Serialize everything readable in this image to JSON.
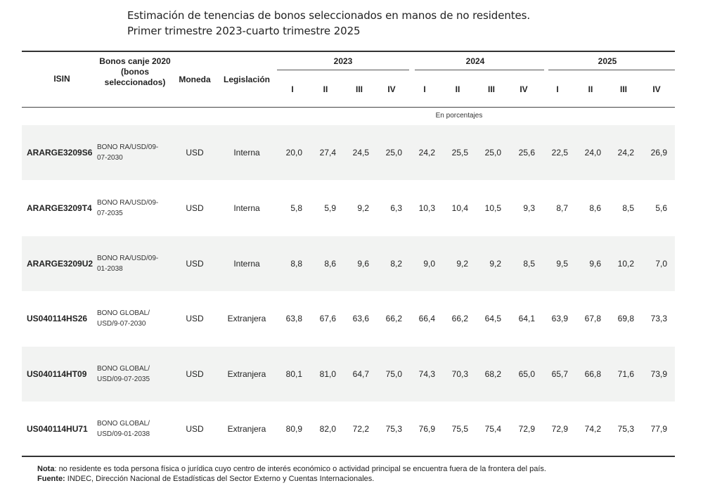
{
  "title": {
    "line1": "Estimación de tenencias de bonos seleccionados en manos de no residentes.",
    "line2": "Primer trimestre 2023-cuarto trimestre 2025"
  },
  "headers": {
    "isin": "ISIN",
    "bonos": "Bonos canje 2020 (bonos seleccionados)",
    "moneda": "Moneda",
    "legislacion": "Legislación",
    "years": [
      "2023",
      "2024",
      "2025"
    ],
    "quarters": [
      "I",
      "II",
      "III",
      "IV",
      "I",
      "II",
      "III",
      "IV",
      "I",
      "II",
      "III",
      "IV"
    ]
  },
  "unit_label": "En porcentajes",
  "rows": [
    {
      "isin": "ARARGE3209S6",
      "bono": "BONO RA/USD/09-07-2030",
      "moneda": "USD",
      "legislacion": "Interna",
      "values": [
        "20,0",
        "27,4",
        "24,5",
        "25,0",
        "24,2",
        "25,5",
        "25,0",
        "25,6",
        "22,5",
        "24,0",
        "24,2",
        "26,9"
      ]
    },
    {
      "isin": "ARARGE3209T4",
      "bono": "BONO RA/USD/09-07-2035",
      "moneda": "USD",
      "legislacion": "Interna",
      "values": [
        "5,8",
        "5,9",
        "9,2",
        "6,3",
        "10,3",
        "10,4",
        "10,5",
        "9,3",
        "8,7",
        "8,6",
        "8,5",
        "5,6"
      ]
    },
    {
      "isin": "ARARGE3209U2",
      "bono": "BONO RA/USD/09-01-2038",
      "moneda": "USD",
      "legislacion": "Interna",
      "values": [
        "8,8",
        "8,6",
        "9,6",
        "8,2",
        "9,0",
        "9,2",
        "9,2",
        "8,5",
        "9,5",
        "9,6",
        "10,2",
        "7,0"
      ]
    },
    {
      "isin": "US040114HS26",
      "bono": "BONO GLOBAL/ USD/9-07-2030",
      "moneda": "USD",
      "legislacion": "Extranjera",
      "values": [
        "63,8",
        "67,6",
        "63,6",
        "66,2",
        "66,4",
        "66,2",
        "64,5",
        "64,1",
        "63,9",
        "67,8",
        "69,8",
        "73,3"
      ]
    },
    {
      "isin": "US040114HT09",
      "bono": "BONO GLOBAL/ USD/09-07-2035",
      "moneda": "USD",
      "legislacion": "Extranjera",
      "values": [
        "80,1",
        "81,0",
        "64,7",
        "75,0",
        "74,3",
        "70,3",
        "68,2",
        "65,0",
        "65,7",
        "66,8",
        "71,6",
        "73,9"
      ]
    },
    {
      "isin": "US040114HU71",
      "bono": "BONO GLOBAL/ USD/09-01-2038",
      "moneda": "USD",
      "legislacion": "Extranjera",
      "values": [
        "80,9",
        "82,0",
        "72,2",
        "75,3",
        "76,9",
        "75,5",
        "75,4",
        "72,9",
        "72,9",
        "74,2",
        "75,3",
        "77,9"
      ]
    }
  ],
  "notes": {
    "nota_label": "Nota",
    "nota_text": ": no residente es toda persona física o jurídica cuyo centro de interés económico o actividad principal se encuentra fuera de la frontera del país.",
    "fuente_label": "Fuente:",
    "fuente_text": " INDEC, Dirección Nacional de Estadísticas del Sector Externo y Cuentas Internacionales."
  }
}
